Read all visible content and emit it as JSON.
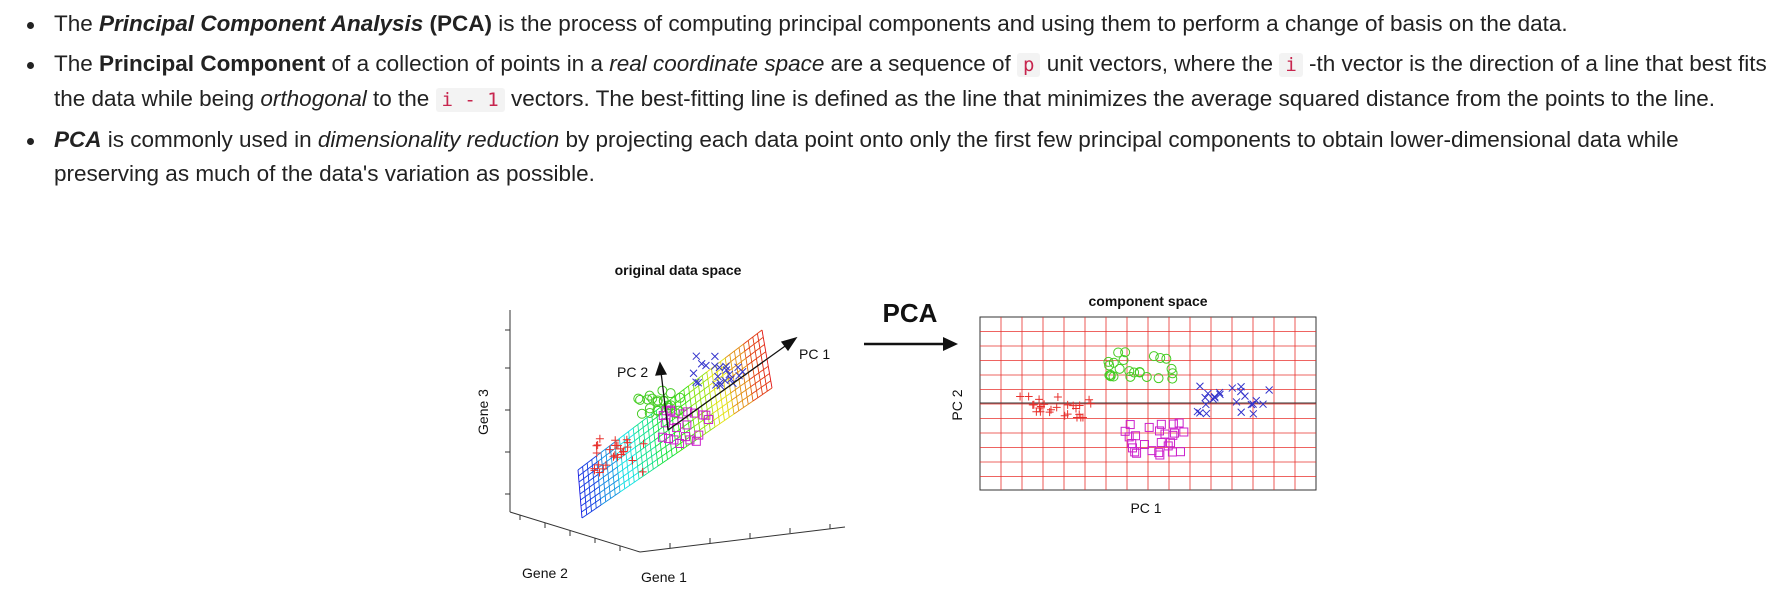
{
  "bullets": [
    {
      "parts": [
        {
          "t": "The ",
          "s": "n"
        },
        {
          "t": "Principal Component Analysis",
          "s": "bi"
        },
        {
          "t": " ",
          "s": "n"
        },
        {
          "t": "(PCA)",
          "s": "b"
        },
        {
          "t": " is the process of computing principal components and using them to perform a change of basis on the data.",
          "s": "n"
        }
      ]
    },
    {
      "parts": [
        {
          "t": "The ",
          "s": "n"
        },
        {
          "t": "Principal Component",
          "s": "b"
        },
        {
          "t": " of a collection of points in a ",
          "s": "n"
        },
        {
          "t": "real coordinate space",
          "s": "i"
        },
        {
          "t": " are a sequence of ",
          "s": "n"
        },
        {
          "t": "p",
          "s": "c"
        },
        {
          "t": " unit vectors, where the ",
          "s": "n"
        },
        {
          "t": "i",
          "s": "c"
        },
        {
          "t": " -th vector is the direction of a line that best fits the data while being ",
          "s": "n"
        },
        {
          "t": "orthogonal",
          "s": "i"
        },
        {
          "t": " to the ",
          "s": "n"
        },
        {
          "t": "i - 1",
          "s": "c"
        },
        {
          "t": " vectors. The best-fitting line is defined as the line that minimizes the average squared distance from the points to the line.",
          "s": "n"
        }
      ]
    },
    {
      "parts": [
        {
          "t": "PCA",
          "s": "bi"
        },
        {
          "t": " is commonly used in ",
          "s": "n"
        },
        {
          "t": "dimensionality reduction",
          "s": "i"
        },
        {
          "t": " by projecting each data point onto only the first few principal components to obtain lower-dimensional data while preserving as much of the data's variation as possible.",
          "s": "n"
        }
      ]
    }
  ],
  "figure": {
    "left_title": "original data space",
    "left_xlabel": "Gene 1",
    "left_ylabel": "Gene 2",
    "left_zlabel": "Gene 3",
    "pc1_label": "PC 1",
    "pc2_label": "PC 2",
    "arrow_label": "PCA",
    "right_title": "component space",
    "right_xlabel": "PC 1",
    "right_ylabel": "PC 2",
    "cluster_colors": {
      "red": "#e8302c",
      "green": "#44cc22",
      "magenta": "#cc22cc",
      "blue": "#3333cc"
    },
    "grid_color": "#e8302c"
  }
}
